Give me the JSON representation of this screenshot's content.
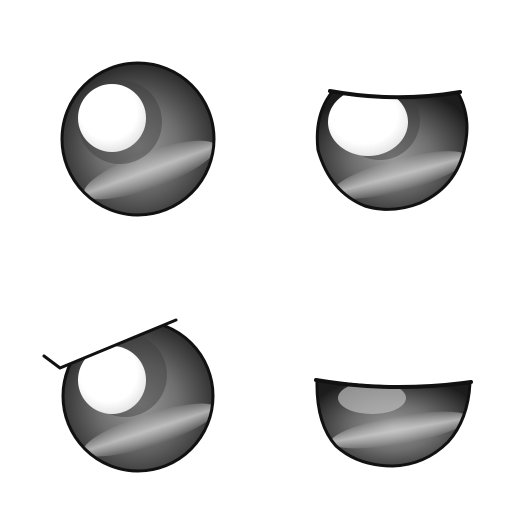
{
  "colors": {
    "background": "#ffffff",
    "outline": "#111111",
    "iris_dark": "#2b2b2b",
    "iris_mid": "#6e6e6e",
    "iris_light": "#c9c9c9",
    "highlight": "#ffffff"
  },
  "eyes": [
    {
      "id": "open",
      "state": "open"
    },
    {
      "id": "half-closed",
      "state": "upper-lid-cut"
    },
    {
      "id": "angry",
      "state": "slanted-brow-lid"
    },
    {
      "id": "squint",
      "state": "lower-half"
    }
  ]
}
